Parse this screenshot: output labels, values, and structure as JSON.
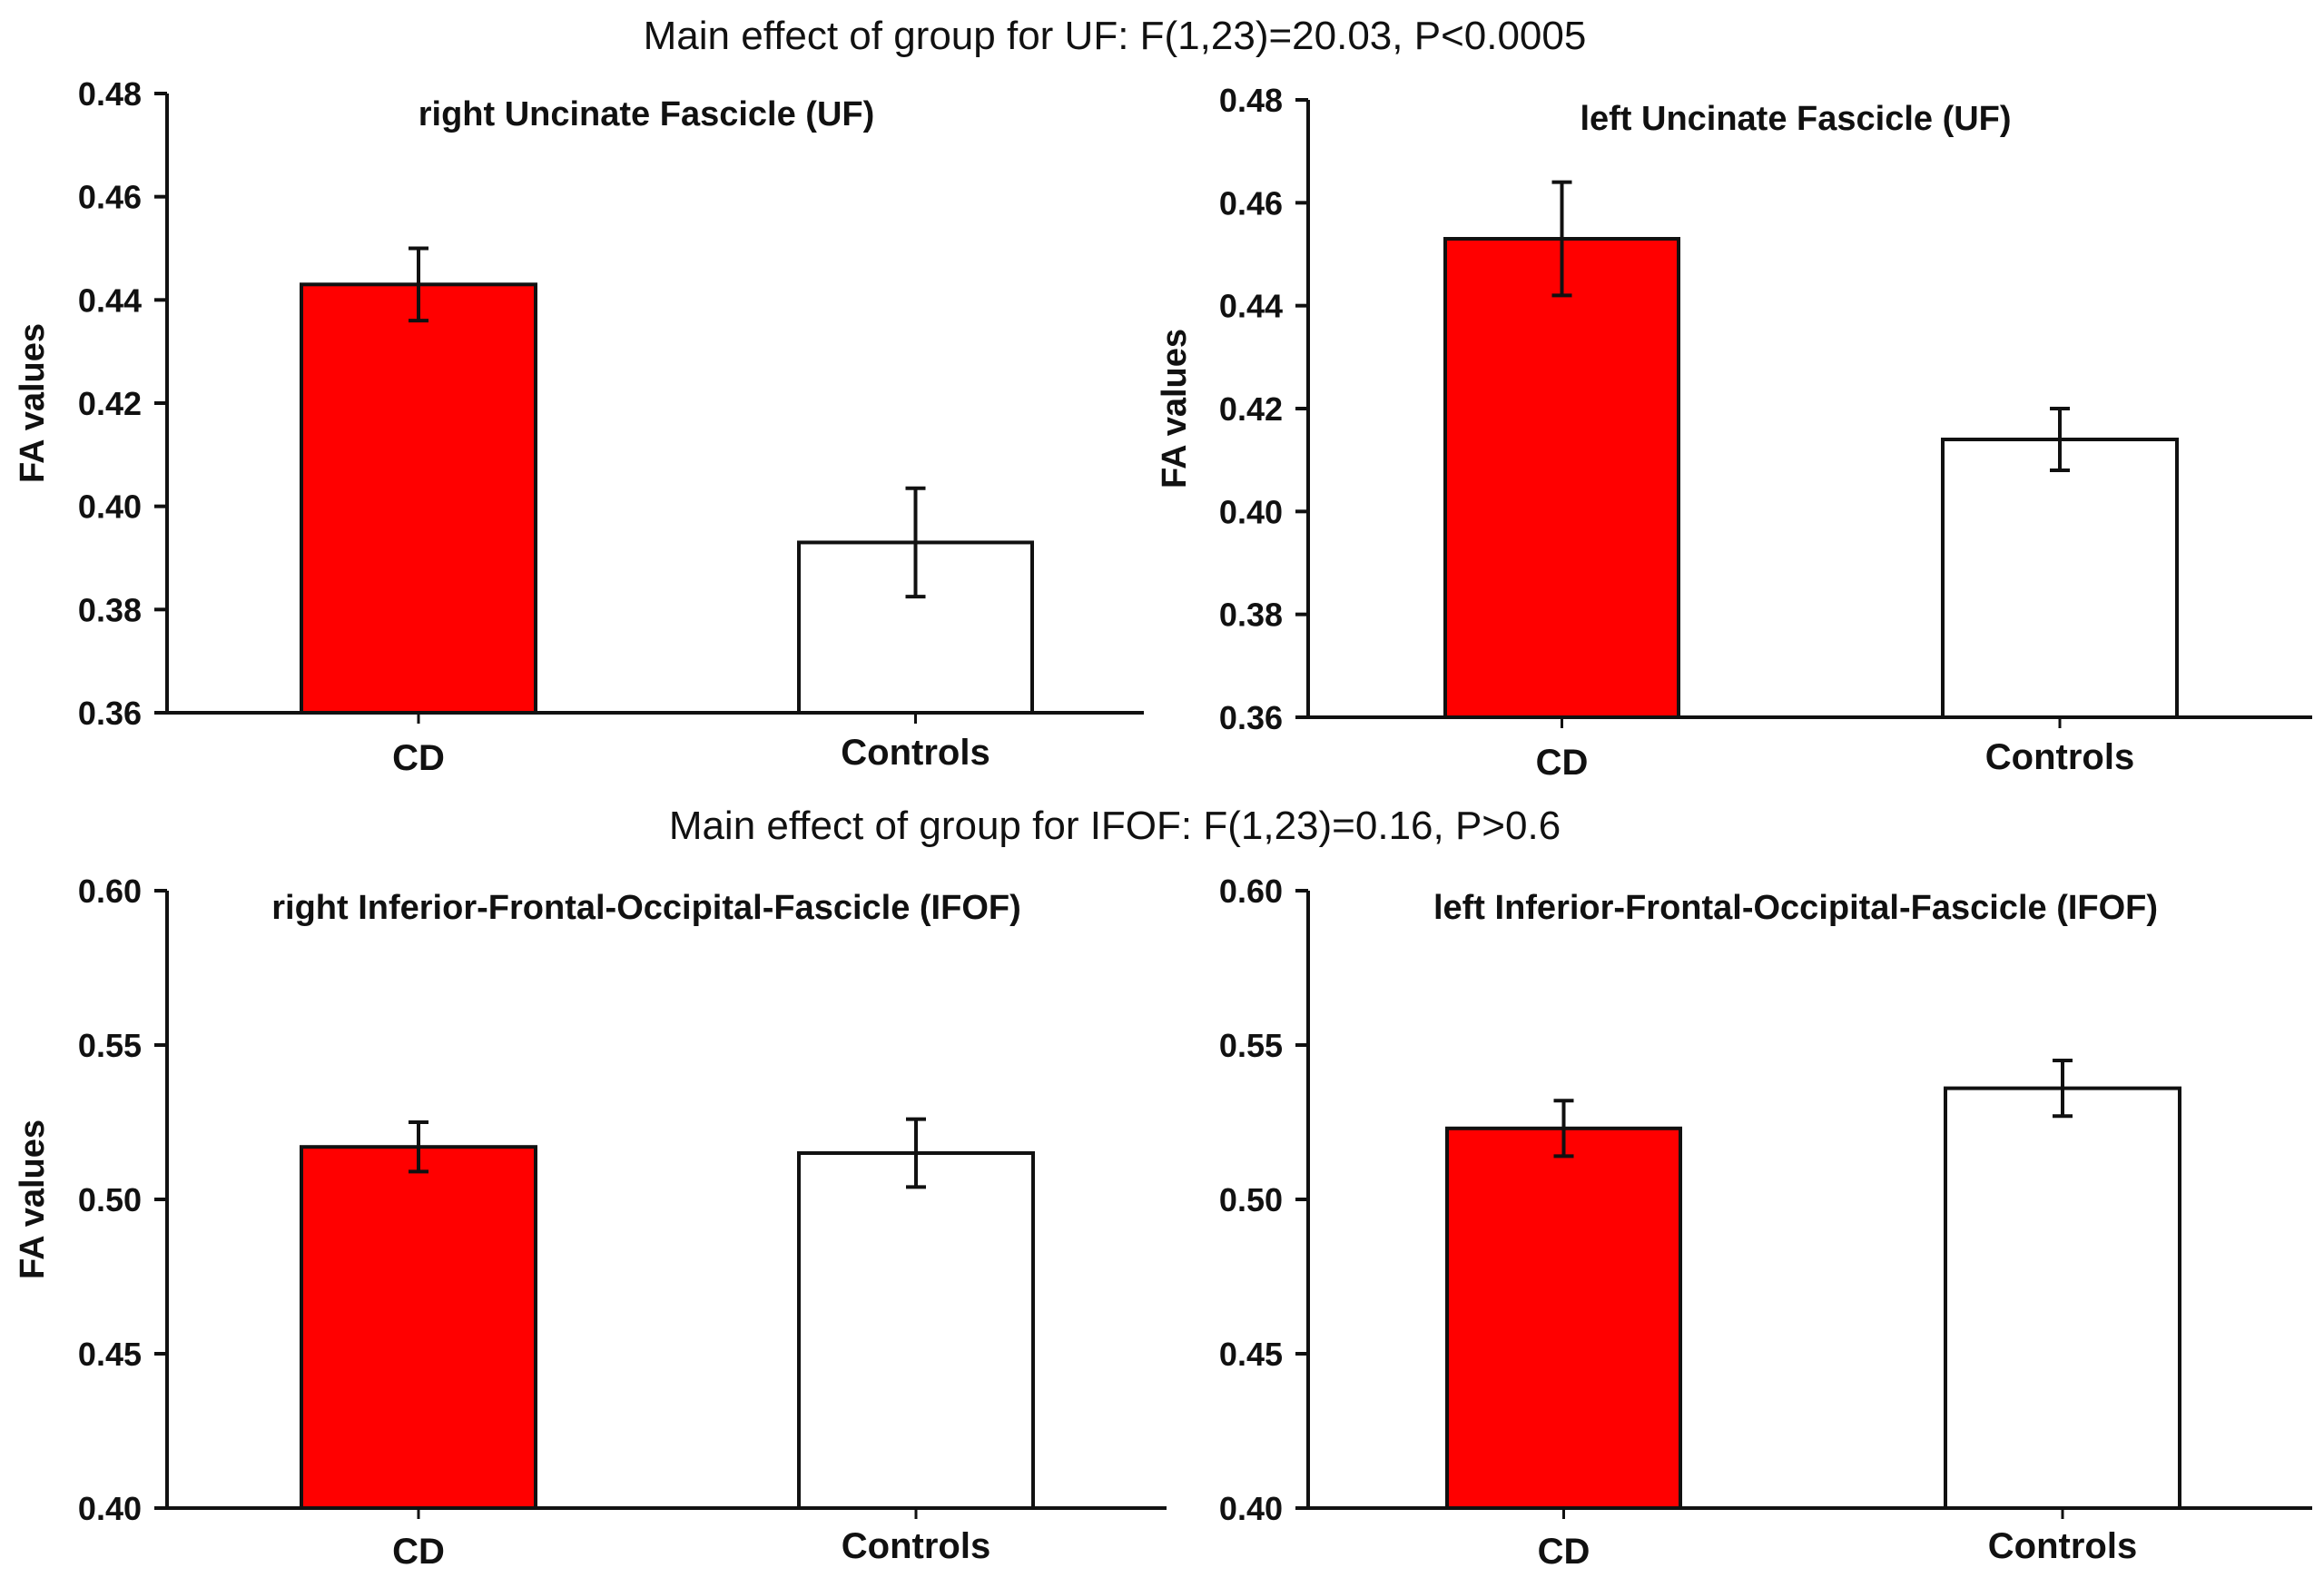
{
  "headings": [
    "Main effect of group for UF:  F(1,23)=20.03, P<0.0005",
    "Main effect of group for IFOF:  F(1,23)=0.16, P>0.6"
  ],
  "colors": {
    "cd": "#ff0000",
    "controls": "#ffffff",
    "axis": "#111111"
  },
  "chart_data": [
    {
      "type": "bar",
      "title": "right Uncinate Fascicle (UF)",
      "ylabel": "FA values",
      "categories": [
        "CD",
        "Controls"
      ],
      "values": [
        0.443,
        0.393
      ],
      "errors": [
        0.007,
        0.0105
      ],
      "ylim": [
        0.36,
        0.48
      ],
      "yticks": [
        0.36,
        0.38,
        0.4,
        0.42,
        0.44,
        0.46,
        0.48
      ],
      "tick_labels": [
        "0.36",
        "0.38",
        "0.40",
        "0.42",
        "0.44",
        "0.46",
        "0.48"
      ],
      "grid": false
    },
    {
      "type": "bar",
      "title": "left Uncinate Fascicle (UF)",
      "ylabel": "FA values",
      "categories": [
        "CD",
        "Controls"
      ],
      "values": [
        0.453,
        0.414
      ],
      "errors": [
        0.011,
        0.006
      ],
      "ylim": [
        0.36,
        0.48
      ],
      "yticks": [
        0.36,
        0.38,
        0.4,
        0.42,
        0.44,
        0.46,
        0.48
      ],
      "tick_labels": [
        "0.36",
        "0.38",
        "0.40",
        "0.42",
        "0.44",
        "0.46",
        "0.48"
      ],
      "grid": false
    },
    {
      "type": "bar",
      "title": "right Inferior-Frontal-Occipital-Fascicle (IFOF)",
      "ylabel": "FA values",
      "categories": [
        "CD",
        "Controls"
      ],
      "values": [
        0.517,
        0.515
      ],
      "errors": [
        0.008,
        0.011
      ],
      "ylim": [
        0.4,
        0.6
      ],
      "yticks": [
        0.4,
        0.45,
        0.5,
        0.55,
        0.6
      ],
      "tick_labels": [
        "0.40",
        "0.45",
        "0.50",
        "0.55",
        "0.60"
      ],
      "grid": false
    },
    {
      "type": "bar",
      "title": "left Inferior-Frontal-Occipital-Fascicle (IFOF)",
      "ylabel": "",
      "categories": [
        "CD",
        "Controls"
      ],
      "values": [
        0.523,
        0.536
      ],
      "errors": [
        0.009,
        0.009
      ],
      "ylim": [
        0.4,
        0.6
      ],
      "yticks": [
        0.4,
        0.45,
        0.5,
        0.55,
        0.6
      ],
      "tick_labels": [
        "0.40",
        "0.45",
        "0.50",
        "0.55",
        "0.60"
      ],
      "grid": false
    }
  ]
}
